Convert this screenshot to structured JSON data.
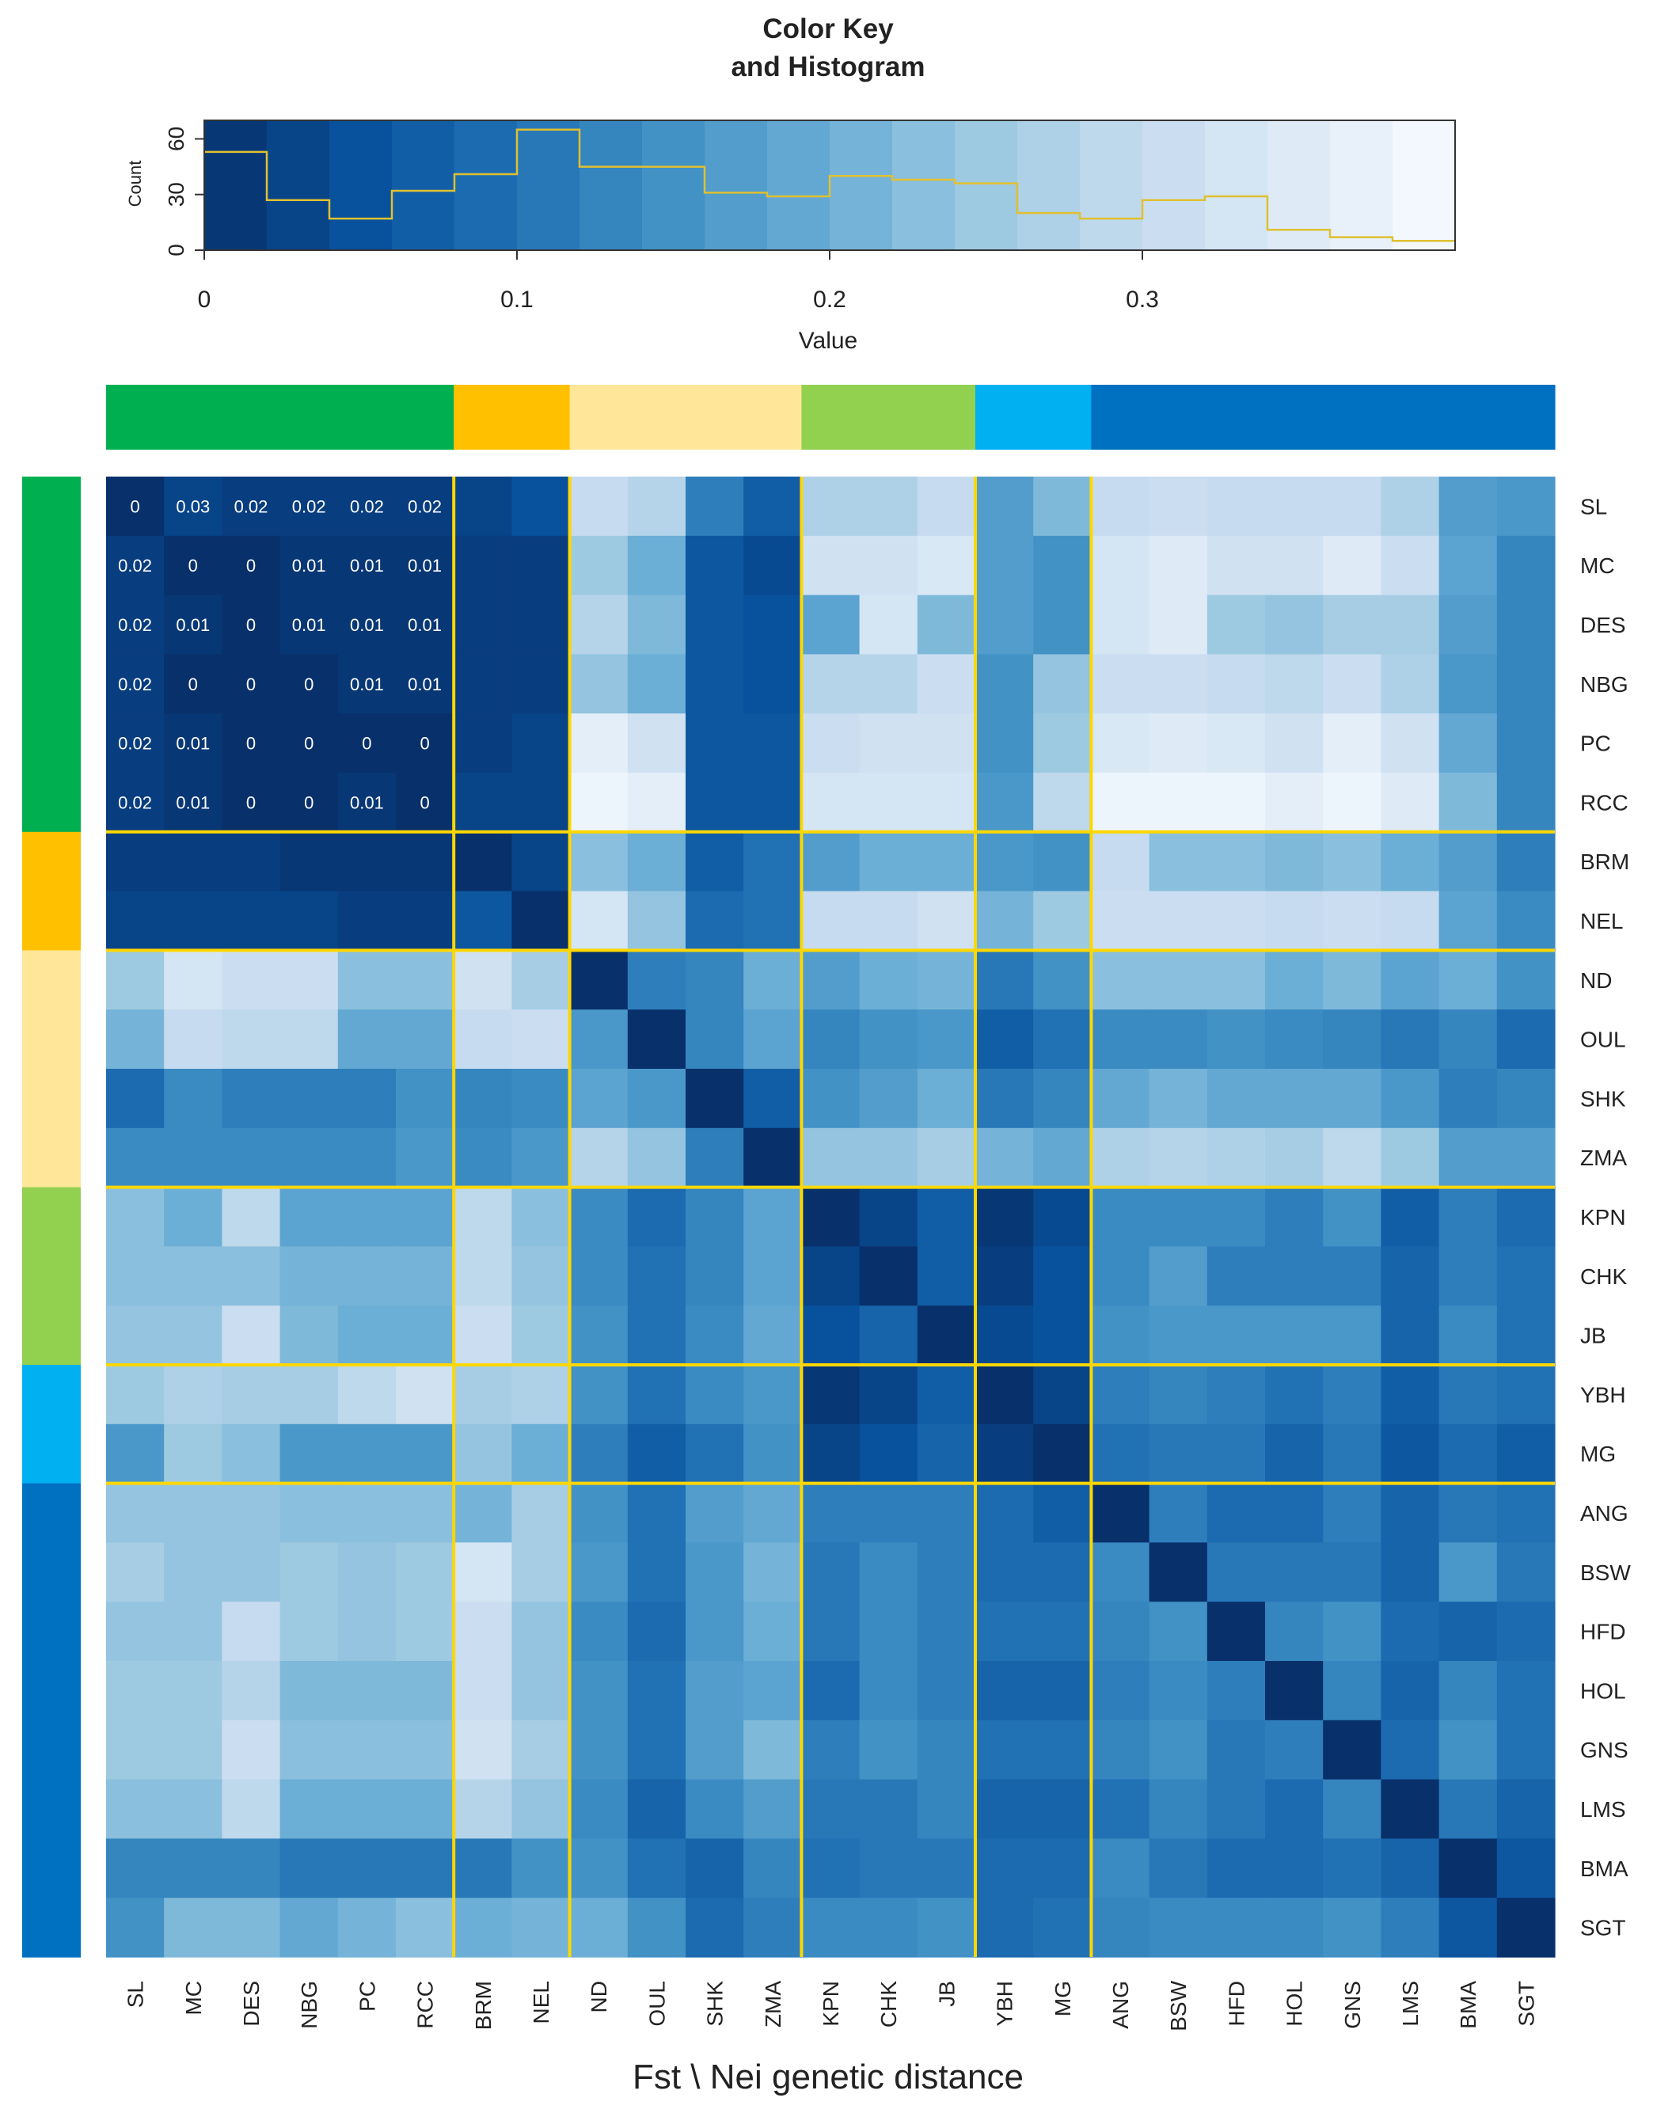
{
  "chart_data": {
    "type": "heatmap",
    "xlabel": "Fst \\ Nei genetic distance",
    "populations": [
      "SL",
      "MC",
      "DES",
      "NBG",
      "PC",
      "RCC",
      "BRM",
      "NEL",
      "ND",
      "OUL",
      "SHK",
      "ZMA",
      "KPN",
      "CHK",
      "JB",
      "YBH",
      "MG",
      "ANG",
      "BSW",
      "HFD",
      "HOL",
      "GNS",
      "LMS",
      "BMA",
      "SGT"
    ],
    "groups": [
      {
        "color": "#00b050",
        "members": [
          "SL",
          "MC",
          "DES",
          "NBG",
          "PC",
          "RCC"
        ]
      },
      {
        "color": "#ffc000",
        "members": [
          "BRM",
          "NEL"
        ]
      },
      {
        "color": "#ffe699",
        "members": [
          "ND",
          "OUL",
          "SHK",
          "ZMA"
        ]
      },
      {
        "color": "#92d050",
        "members": [
          "KPN",
          "CHK",
          "JB"
        ]
      },
      {
        "color": "#00b0f0",
        "members": [
          "YBH",
          "MG"
        ]
      },
      {
        "color": "#0070c0",
        "members": [
          "ANG",
          "BSW",
          "HFD",
          "HOL",
          "GNS",
          "LMS",
          "BMA",
          "SGT"
        ]
      }
    ],
    "value_range": [
      0,
      0.4
    ],
    "colormap": "Blues (high = dark, low = light)",
    "block_separator_color": "#ffd700",
    "annotated_block": [
      "SL",
      "MC",
      "DES",
      "NBG",
      "PC",
      "RCC"
    ],
    "matrix": [
      [
        0,
        0.03,
        0.02,
        0.02,
        0.02,
        0.02,
        0.03,
        0.05,
        0.3,
        0.28,
        0.12,
        0.07,
        0.27,
        0.27,
        0.3,
        0.17,
        0.22,
        0.3,
        0.31,
        0.3,
        0.3,
        0.3,
        0.27,
        0.17,
        0.16
      ],
      [
        0.02,
        0,
        0,
        0.01,
        0.01,
        0.01,
        0.02,
        0.02,
        0.25,
        0.2,
        0.06,
        0.04,
        0.32,
        0.32,
        0.34,
        0.17,
        0.15,
        0.33,
        0.35,
        0.32,
        0.32,
        0.35,
        0.31,
        0.18,
        0.13
      ],
      [
        0.02,
        0.01,
        0,
        0.01,
        0.01,
        0.01,
        0.02,
        0.02,
        0.28,
        0.22,
        0.06,
        0.05,
        0.18,
        0.33,
        0.22,
        0.17,
        0.15,
        0.33,
        0.35,
        0.25,
        0.24,
        0.26,
        0.26,
        0.17,
        0.13
      ],
      [
        0.02,
        0,
        0,
        0,
        0.01,
        0.01,
        0.02,
        0.02,
        0.24,
        0.2,
        0.06,
        0.05,
        0.28,
        0.28,
        0.31,
        0.15,
        0.24,
        0.31,
        0.31,
        0.3,
        0.29,
        0.31,
        0.27,
        0.16,
        0.13
      ],
      [
        0.02,
        0.01,
        0,
        0,
        0,
        0,
        0.02,
        0.03,
        0.36,
        0.32,
        0.06,
        0.06,
        0.31,
        0.32,
        0.32,
        0.15,
        0.25,
        0.34,
        0.35,
        0.34,
        0.32,
        0.36,
        0.32,
        0.19,
        0.13
      ],
      [
        0.02,
        0.01,
        0,
        0,
        0.01,
        0,
        0.03,
        0.03,
        0.38,
        0.36,
        0.06,
        0.06,
        0.33,
        0.33,
        0.33,
        0.16,
        0.29,
        0.38,
        0.38,
        0.38,
        0.36,
        0.38,
        0.35,
        0.22,
        0.13
      ],
      [
        0.02,
        0.02,
        0.02,
        0.01,
        0.01,
        0.01,
        0,
        0.03,
        0.23,
        0.2,
        0.07,
        0.1,
        0.17,
        0.2,
        0.2,
        0.16,
        0.15,
        0.3,
        0.23,
        0.23,
        0.22,
        0.23,
        0.2,
        0.17,
        0.12
      ],
      [
        0.03,
        0.03,
        0.03,
        0.03,
        0.02,
        0.02,
        0.06,
        0,
        0.33,
        0.24,
        0.09,
        0.1,
        0.3,
        0.3,
        0.32,
        0.21,
        0.25,
        0.31,
        0.31,
        0.31,
        0.3,
        0.31,
        0.3,
        0.18,
        0.14
      ],
      [
        0.25,
        0.33,
        0.31,
        0.31,
        0.23,
        0.23,
        0.32,
        0.26,
        0,
        0.12,
        0.13,
        0.2,
        0.17,
        0.2,
        0.21,
        0.11,
        0.15,
        0.23,
        0.23,
        0.23,
        0.2,
        0.22,
        0.18,
        0.2,
        0.15
      ],
      [
        0.21,
        0.3,
        0.29,
        0.29,
        0.19,
        0.19,
        0.3,
        0.31,
        0.16,
        0,
        0.13,
        0.18,
        0.13,
        0.15,
        0.16,
        0.07,
        0.1,
        0.14,
        0.14,
        0.15,
        0.14,
        0.13,
        0.11,
        0.13,
        0.09
      ],
      [
        0.09,
        0.14,
        0.12,
        0.12,
        0.12,
        0.15,
        0.13,
        0.14,
        0.18,
        0.16,
        0,
        0.07,
        0.15,
        0.17,
        0.2,
        0.11,
        0.13,
        0.19,
        0.21,
        0.19,
        0.19,
        0.19,
        0.16,
        0.12,
        0.13
      ],
      [
        0.14,
        0.14,
        0.14,
        0.14,
        0.14,
        0.16,
        0.14,
        0.16,
        0.28,
        0.24,
        0.12,
        0,
        0.24,
        0.24,
        0.26,
        0.21,
        0.19,
        0.27,
        0.28,
        0.27,
        0.26,
        0.29,
        0.25,
        0.17,
        0.17
      ],
      [
        0.23,
        0.2,
        0.29,
        0.18,
        0.18,
        0.18,
        0.29,
        0.23,
        0.14,
        0.09,
        0.13,
        0.18,
        0,
        0.03,
        0.07,
        0.01,
        0.04,
        0.14,
        0.14,
        0.14,
        0.12,
        0.15,
        0.07,
        0.12,
        0.09
      ],
      [
        0.23,
        0.23,
        0.23,
        0.21,
        0.21,
        0.21,
        0.29,
        0.24,
        0.14,
        0.1,
        0.13,
        0.18,
        0.03,
        0,
        0.07,
        0.02,
        0.05,
        0.14,
        0.17,
        0.12,
        0.12,
        0.12,
        0.08,
        0.12,
        0.1
      ],
      [
        0.24,
        0.24,
        0.31,
        0.22,
        0.2,
        0.2,
        0.31,
        0.25,
        0.15,
        0.1,
        0.14,
        0.19,
        0.05,
        0.08,
        0,
        0.04,
        0.05,
        0.15,
        0.16,
        0.16,
        0.16,
        0.16,
        0.08,
        0.14,
        0.1
      ],
      [
        0.25,
        0.27,
        0.26,
        0.26,
        0.29,
        0.32,
        0.26,
        0.27,
        0.15,
        0.1,
        0.14,
        0.16,
        0.01,
        0.03,
        0.07,
        0,
        0.03,
        0.12,
        0.13,
        0.12,
        0.1,
        0.12,
        0.07,
        0.11,
        0.1
      ],
      [
        0.16,
        0.25,
        0.23,
        0.16,
        0.16,
        0.16,
        0.24,
        0.2,
        0.12,
        0.07,
        0.1,
        0.15,
        0.03,
        0.05,
        0.08,
        0.02,
        0,
        0.1,
        0.11,
        0.11,
        0.08,
        0.11,
        0.06,
        0.09,
        0.07
      ],
      [
        0.24,
        0.24,
        0.24,
        0.23,
        0.23,
        0.23,
        0.21,
        0.26,
        0.15,
        0.1,
        0.17,
        0.19,
        0.12,
        0.12,
        0.12,
        0.09,
        0.07,
        0,
        0.12,
        0.09,
        0.09,
        0.12,
        0.08,
        0.11,
        0.1
      ],
      [
        0.26,
        0.24,
        0.24,
        0.25,
        0.24,
        0.25,
        0.33,
        0.26,
        0.16,
        0.1,
        0.16,
        0.21,
        0.11,
        0.14,
        0.12,
        0.09,
        0.09,
        0.14,
        0,
        0.11,
        0.11,
        0.11,
        0.08,
        0.16,
        0.11
      ],
      [
        0.24,
        0.24,
        0.3,
        0.25,
        0.24,
        0.25,
        0.31,
        0.24,
        0.14,
        0.09,
        0.16,
        0.2,
        0.11,
        0.14,
        0.12,
        0.1,
        0.1,
        0.13,
        0.15,
        0,
        0.13,
        0.15,
        0.09,
        0.08,
        0.09
      ],
      [
        0.25,
        0.25,
        0.28,
        0.22,
        0.22,
        0.22,
        0.31,
        0.24,
        0.15,
        0.1,
        0.17,
        0.18,
        0.09,
        0.14,
        0.12,
        0.08,
        0.08,
        0.12,
        0.14,
        0.12,
        0,
        0.13,
        0.08,
        0.13,
        0.1
      ],
      [
        0.25,
        0.25,
        0.31,
        0.23,
        0.23,
        0.23,
        0.32,
        0.26,
        0.15,
        0.1,
        0.17,
        0.22,
        0.12,
        0.15,
        0.13,
        0.1,
        0.1,
        0.13,
        0.15,
        0.11,
        0.12,
        0,
        0.09,
        0.15,
        0.1
      ],
      [
        0.23,
        0.23,
        0.29,
        0.2,
        0.2,
        0.2,
        0.28,
        0.24,
        0.14,
        0.08,
        0.14,
        0.17,
        0.11,
        0.11,
        0.13,
        0.08,
        0.08,
        0.1,
        0.13,
        0.11,
        0.09,
        0.13,
        0,
        0.11,
        0.08
      ],
      [
        0.13,
        0.13,
        0.13,
        0.11,
        0.11,
        0.11,
        0.11,
        0.15,
        0.15,
        0.1,
        0.08,
        0.13,
        0.1,
        0.11,
        0.11,
        0.09,
        0.09,
        0.14,
        0.11,
        0.09,
        0.09,
        0.1,
        0.08,
        0,
        0.06
      ],
      [
        0.15,
        0.22,
        0.22,
        0.19,
        0.21,
        0.23,
        0.2,
        0.21,
        0.2,
        0.15,
        0.09,
        0.12,
        0.14,
        0.14,
        0.15,
        0.09,
        0.1,
        0.13,
        0.14,
        0.14,
        0.14,
        0.15,
        0.12,
        0.06,
        0
      ]
    ],
    "color_key": {
      "title": "Color Key\nand Histogram",
      "xlabel": "Value",
      "ylabel": "Count",
      "x_ticks": [
        "0",
        "0.1",
        "0.2",
        "0.3"
      ],
      "x_tick_values": [
        0,
        0.1,
        0.2,
        0.3
      ],
      "y_ticks": [
        "0",
        "30",
        "60"
      ],
      "y_tick_values": [
        0,
        30,
        60
      ],
      "x_range": [
        0,
        0.4
      ],
      "y_range": [
        0,
        70
      ],
      "histogram_bin_edges": [
        0,
        0.02,
        0.04,
        0.06,
        0.08,
        0.1,
        0.12,
        0.14,
        0.16,
        0.18,
        0.2,
        0.22,
        0.24,
        0.26,
        0.28,
        0.3,
        0.32,
        0.34,
        0.36,
        0.38,
        0.4
      ],
      "histogram_counts": [
        53,
        27,
        17,
        32,
        41,
        65,
        45,
        45,
        31,
        29,
        40,
        38,
        36,
        20,
        17,
        27,
        29,
        11,
        7,
        5
      ],
      "histogram_line_color": "#e0c030"
    }
  }
}
